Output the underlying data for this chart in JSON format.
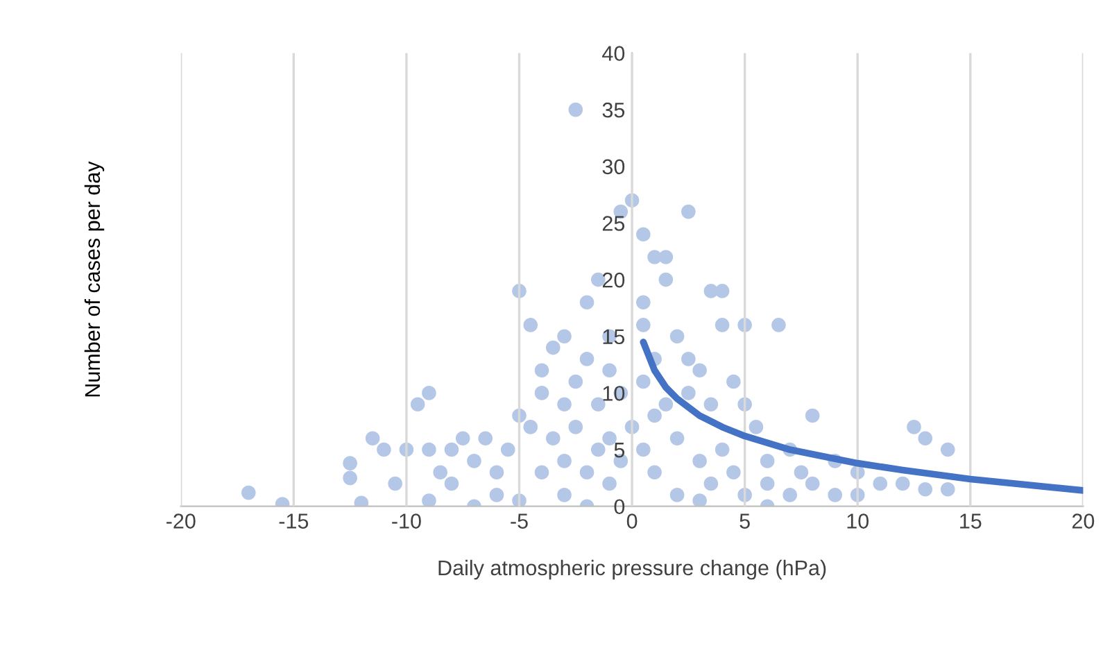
{
  "chart_data": {
    "type": "scatter",
    "xlabel": "Daily atmospheric pressure change (hPa)",
    "ylabel": "Number of cases per day",
    "xlim": [
      -20,
      20
    ],
    "xticks": [
      -20,
      -15,
      -10,
      -5,
      0,
      5,
      10,
      15,
      20
    ],
    "ylim": [
      0,
      40
    ],
    "yticks": [
      0,
      5,
      10,
      15,
      20,
      25,
      30,
      35,
      40
    ],
    "grid": "x",
    "marker": "circle",
    "series": [
      {
        "color": "#b4c7e7",
        "x": [
          -17,
          -15.5,
          -12.5,
          -12.5,
          -12,
          -11.5,
          -11,
          -10,
          -9.5,
          -9,
          -10.5,
          -9,
          -8,
          -8.5,
          -9,
          -8,
          -7.5,
          -7,
          -6.5,
          -6,
          -6,
          -5.5,
          -5,
          -5,
          -4.5,
          -4.5,
          -4,
          -4,
          -4,
          -3.5,
          -3.5,
          -3,
          -3,
          -3,
          -3,
          -2.5,
          -2.5,
          -2.5,
          -2,
          -2,
          -2,
          -1.5,
          -1.5,
          -1.5,
          -1,
          -1,
          -1,
          -1,
          -0.5,
          -0.5,
          -0.5,
          0,
          0,
          0.5,
          0.5,
          0.5,
          0.5,
          0.5,
          1,
          1,
          1,
          1,
          1.5,
          1.5,
          1.5,
          2,
          2,
          2,
          2.5,
          2.5,
          2.5,
          3,
          3,
          3.5,
          3.5,
          3.5,
          4,
          4,
          4,
          4.5,
          4.5,
          5,
          5,
          5,
          5.5,
          6,
          6,
          6.5,
          7,
          7,
          7.5,
          8,
          8,
          9,
          9,
          10,
          10,
          11,
          12,
          12.5,
          13,
          13,
          14,
          14,
          -7,
          -5,
          -2,
          3,
          6
        ],
        "values": [
          1.2,
          0.2,
          3.8,
          2.5,
          0.3,
          6,
          5,
          5,
          9,
          10,
          2,
          5,
          5,
          3,
          0.5,
          2,
          6,
          4,
          6,
          3,
          1,
          5,
          8,
          19,
          16,
          7,
          3,
          10,
          12,
          6,
          14,
          15,
          9,
          4,
          1,
          35,
          11,
          7,
          18,
          13,
          3,
          20,
          9,
          5,
          15,
          12,
          6,
          2,
          26,
          10,
          4,
          27,
          7,
          24,
          18,
          16,
          11,
          5,
          22,
          13,
          8,
          3,
          22,
          20,
          9,
          15,
          6,
          1,
          26,
          13,
          10,
          12,
          4,
          19,
          9,
          2,
          19,
          16,
          5,
          11,
          3,
          16,
          9,
          1,
          7,
          4,
          2,
          16,
          5,
          1,
          3,
          8,
          2,
          4,
          1,
          3,
          1,
          2,
          2,
          7,
          6,
          1.5,
          5,
          1.5,
          0,
          0.5,
          0,
          0.5,
          0
        ]
      },
      {
        "type": "line",
        "color": "#4472c4",
        "marker": "none",
        "x": [
          0.5,
          1,
          1.5,
          2,
          3,
          4,
          5,
          7,
          10,
          12,
          15,
          20
        ],
        "values": [
          14.5,
          12,
          10.5,
          9.5,
          8,
          7,
          6.2,
          5,
          3.8,
          3.2,
          2.4,
          1.4
        ]
      }
    ]
  }
}
